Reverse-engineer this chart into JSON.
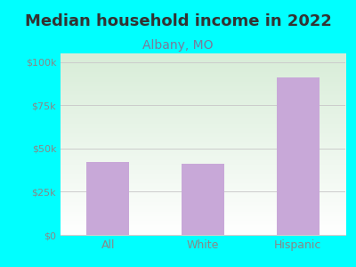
{
  "title": "Median household income in 2022",
  "subtitle": "Albany, MO",
  "categories": [
    "All",
    "White",
    "Hispanic"
  ],
  "values": [
    42000,
    41000,
    91000
  ],
  "bar_color": "#c8a8d8",
  "background_color": "#00FFFF",
  "plot_bg_top": "#d8edd8",
  "plot_bg_bottom": "#ffffff",
  "ylabel_ticks": [
    0,
    25000,
    50000,
    75000,
    100000
  ],
  "ylabel_labels": [
    "$0",
    "$25k",
    "$50k",
    "$75k",
    "$100k"
  ],
  "ylim": [
    0,
    105000
  ],
  "title_fontsize": 13,
  "subtitle_fontsize": 10,
  "title_color": "#333333",
  "subtitle_color": "#7a7a9a",
  "tick_color": "#888888",
  "grid_color": "#cccccc",
  "bar_width": 0.45
}
